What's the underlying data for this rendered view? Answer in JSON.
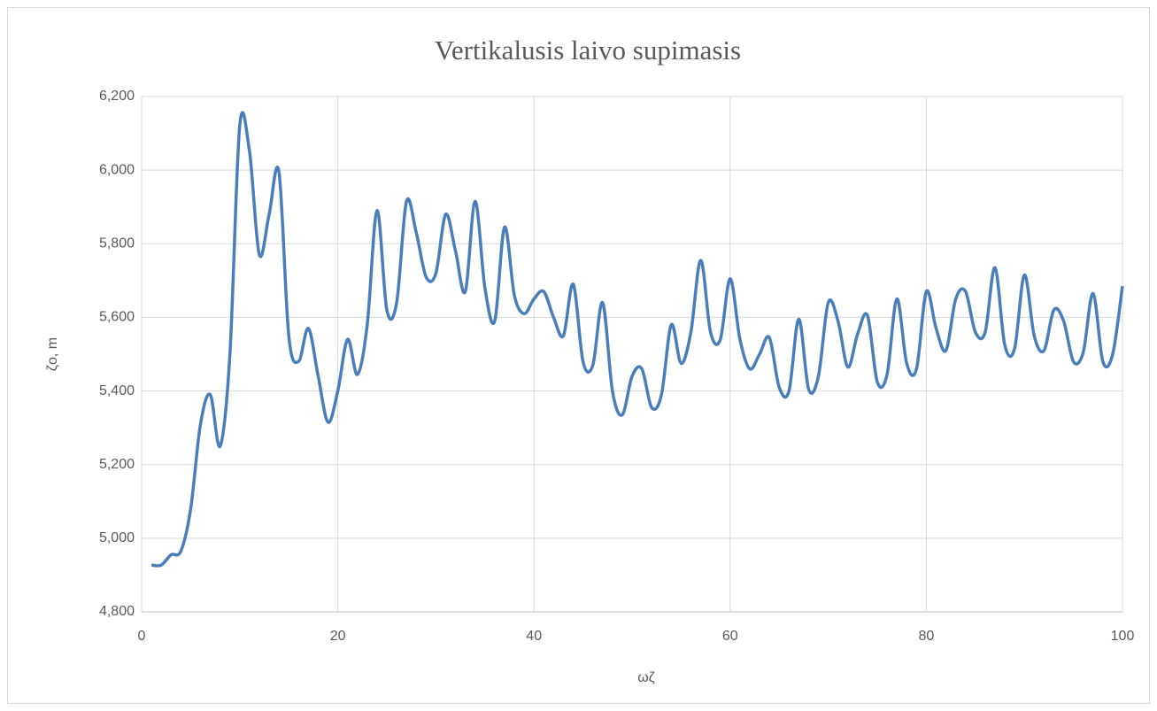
{
  "chart_data": {
    "type": "line",
    "title": "Vertikalusis laivo supimasis",
    "x_label": "ωζ",
    "y_label": "ζo, m",
    "x": [
      1,
      2,
      3,
      4,
      5,
      6,
      7,
      8,
      9,
      10,
      11,
      12,
      13,
      14,
      15,
      16,
      17,
      18,
      19,
      20,
      21,
      22,
      23,
      24,
      25,
      26,
      27,
      28,
      29,
      30,
      31,
      32,
      33,
      34,
      35,
      36,
      37,
      38,
      39,
      40,
      41,
      42,
      43,
      44,
      45,
      46,
      47,
      48,
      49,
      50,
      51,
      52,
      53,
      54,
      55,
      56,
      57,
      58,
      59,
      60,
      61,
      62,
      63,
      64,
      65,
      66,
      67,
      68,
      69,
      70,
      71,
      72,
      73,
      74,
      75,
      76,
      77,
      78,
      79,
      80,
      81,
      82,
      83,
      84,
      85,
      86,
      87,
      88,
      89,
      90,
      91,
      92,
      93,
      94,
      95,
      96,
      97,
      98,
      99,
      100
    ],
    "series": [
      {
        "name": "ζo",
        "color": "#4a7ebb",
        "values": [
          4927,
          4927,
          4955,
          4965,
          5080,
          5310,
          5390,
          5250,
          5500,
          6120,
          6050,
          5770,
          5880,
          5995,
          5550,
          5480,
          5570,
          5440,
          5315,
          5400,
          5540,
          5445,
          5580,
          5890,
          5620,
          5640,
          5915,
          5830,
          5710,
          5720,
          5880,
          5780,
          5670,
          5915,
          5680,
          5590,
          5845,
          5660,
          5610,
          5650,
          5670,
          5600,
          5550,
          5690,
          5480,
          5470,
          5640,
          5400,
          5335,
          5440,
          5460,
          5355,
          5390,
          5580,
          5475,
          5560,
          5755,
          5560,
          5540,
          5705,
          5540,
          5460,
          5500,
          5545,
          5410,
          5400,
          5595,
          5405,
          5440,
          5640,
          5590,
          5465,
          5555,
          5605,
          5425,
          5445,
          5650,
          5475,
          5460,
          5670,
          5570,
          5510,
          5650,
          5670,
          5560,
          5560,
          5735,
          5525,
          5515,
          5715,
          5550,
          5510,
          5620,
          5590,
          5480,
          5505,
          5665,
          5480,
          5500,
          5685
        ]
      }
    ],
    "xlim": [
      0,
      100
    ],
    "xticks": [
      0,
      20,
      40,
      60,
      80,
      100
    ],
    "ylim": [
      4800,
      6200
    ],
    "yticks": [
      {
        "value": 4800,
        "label": "4,800"
      },
      {
        "value": 5000,
        "label": "5,000"
      },
      {
        "value": 5200,
        "label": "5,200"
      },
      {
        "value": 5400,
        "label": "5,400"
      },
      {
        "value": 5600,
        "label": "5,600"
      },
      {
        "value": 5800,
        "label": "5,800"
      },
      {
        "value": 6000,
        "label": "6,000"
      },
      {
        "value": 6200,
        "label": "6,200"
      }
    ],
    "grid": true
  }
}
